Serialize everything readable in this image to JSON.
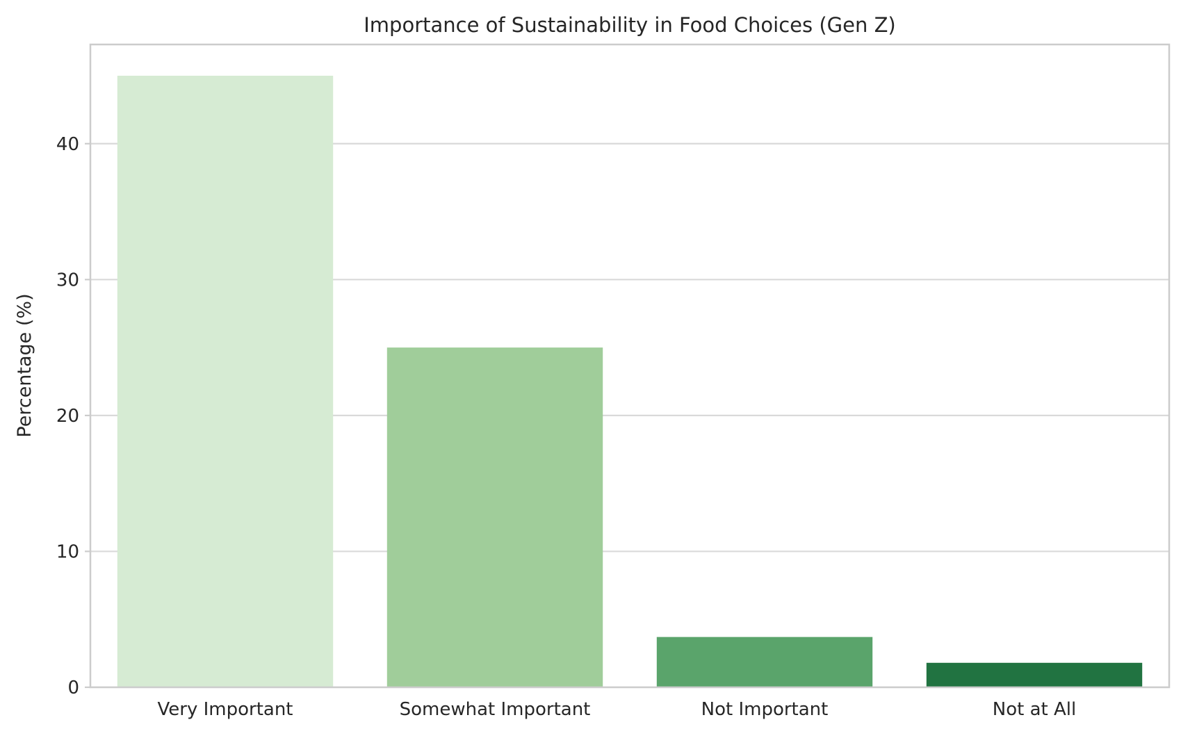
{
  "chart_data": {
    "type": "bar",
    "title": "Importance of Sustainability in Food Choices (Gen Z)",
    "xlabel": "",
    "ylabel": "Percentage (%)",
    "categories": [
      "Very Important",
      "Somewhat Important",
      "Not Important",
      "Not at All"
    ],
    "values": [
      45,
      25,
      3.7,
      1.8
    ],
    "colors": [
      "#d6ebd3",
      "#a0cd9a",
      "#5aa46b",
      "#217341"
    ],
    "ylim": [
      0,
      47.3
    ],
    "yticks": [
      0,
      10,
      20,
      30,
      40
    ],
    "ytick_labels": [
      "0",
      "10",
      "20",
      "30",
      "40"
    ],
    "grid": true,
    "legend": "none"
  }
}
